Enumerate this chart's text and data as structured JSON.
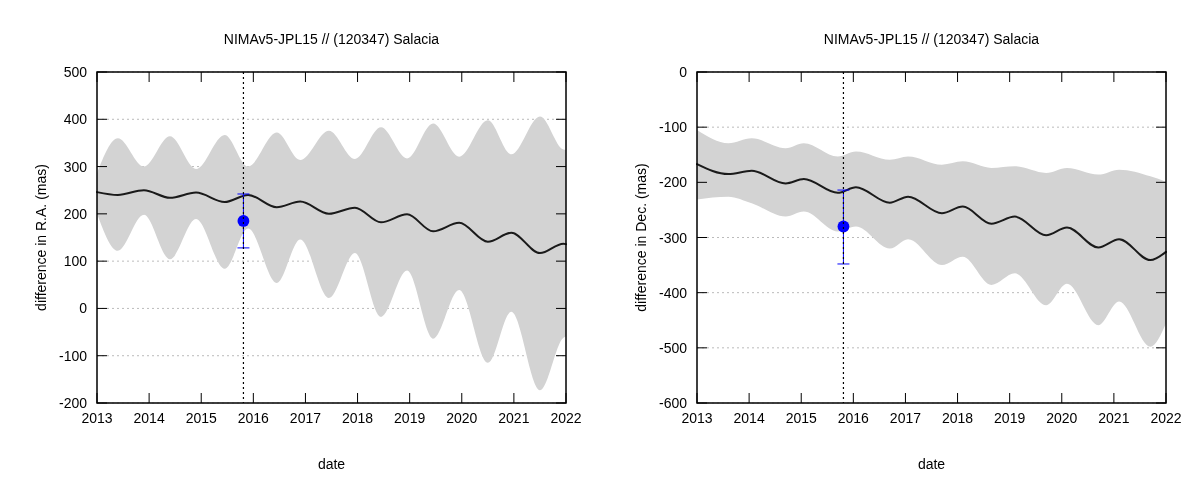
{
  "chart_data": [
    {
      "type": "line",
      "title": "NIMAv5-JPL15 // (120347) Salacia",
      "xlabel": "date",
      "ylabel": "difference in R.A. (mas)",
      "xlim": [
        2013,
        2022
      ],
      "xticks": [
        2013,
        2014,
        2015,
        2016,
        2017,
        2018,
        2019,
        2020,
        2021,
        2022
      ],
      "ylim": [
        -200,
        500
      ],
      "yticks": [
        -200,
        -100,
        0,
        100,
        200,
        300,
        400,
        500
      ],
      "grid": "y",
      "line_style": "solid",
      "series": [
        {
          "type": "line",
          "color": "#1a1a1a",
          "x": [
            2013,
            2013.4,
            2013.9,
            2014.4,
            2014.9,
            2015.45,
            2015.9,
            2016.45,
            2016.9,
            2017.45,
            2017.95,
            2018.45,
            2018.95,
            2019.45,
            2019.95,
            2020.5,
            2020.95,
            2021.5,
            2021.95,
            2022
          ],
          "values": [
            246,
            240,
            250,
            234,
            245,
            225,
            240,
            214,
            226,
            200,
            213,
            182,
            199,
            163,
            181,
            141,
            160,
            117,
            137,
            136
          ],
          "upper": [
            286,
            360,
            300,
            364,
            295,
            367,
            300,
            372,
            314,
            376,
            316,
            383,
            317,
            391,
            321,
            398,
            326,
            406,
            336,
            335
          ],
          "lower": [
            201,
            122,
            198,
            104,
            189,
            84,
            169,
            54,
            146,
            22,
            117,
            -18,
            80,
            -64,
            39,
            -115,
            -7,
            -173,
            -62,
            -59
          ]
        },
        {
          "type": "scatter",
          "color": "#0000ff",
          "marker": "circle",
          "x": [
            2015.81
          ],
          "values": [
            185
          ],
          "errors": [
            [
              128,
              242
            ]
          ]
        }
      ],
      "ref_lines": [
        {
          "axis": "x",
          "value": 2015.81,
          "color": "#000000",
          "line_style": "dotted"
        }
      ]
    },
    {
      "type": "line",
      "title": "NIMAv5-JPL15 // (120347) Salacia",
      "xlabel": "date",
      "ylabel": "difference in Dec. (mas)",
      "xlim": [
        2013,
        2022
      ],
      "xticks": [
        2013,
        2014,
        2015,
        2016,
        2017,
        2018,
        2019,
        2020,
        2021,
        2022
      ],
      "ylim": [
        -600,
        0
      ],
      "yticks": [
        -600,
        -500,
        -400,
        -300,
        -200,
        -100,
        0
      ],
      "grid": "y",
      "line_style": "solid",
      "series": [
        {
          "type": "line",
          "color": "#1a1a1a",
          "x": [
            2013,
            2013.6,
            2014.05,
            2014.7,
            2015.05,
            2015.7,
            2016.05,
            2016.7,
            2017.05,
            2017.7,
            2018.1,
            2018.65,
            2019.1,
            2019.7,
            2020.1,
            2020.7,
            2021.1,
            2021.7,
            2022
          ],
          "values": [
            -167,
            -185,
            -179,
            -202,
            -194,
            -219,
            -209,
            -237,
            -226,
            -256,
            -244,
            -275,
            -262,
            -296,
            -282,
            -318,
            -303,
            -341,
            -326
          ],
          "upper": [
            -105,
            -129,
            -120,
            -138,
            -129,
            -153,
            -144,
            -159,
            -153,
            -168,
            -162,
            -174,
            -171,
            -183,
            -174,
            -186,
            -177,
            -189,
            -199
          ],
          "lower": [
            -231,
            -226,
            -238,
            -262,
            -253,
            -289,
            -280,
            -320,
            -303,
            -350,
            -335,
            -386,
            -365,
            -423,
            -384,
            -459,
            -416,
            -498,
            -456
          ]
        },
        {
          "type": "scatter",
          "color": "#0000ff",
          "marker": "circle",
          "x": [
            2015.81
          ],
          "values": [
            -280
          ],
          "errors": [
            [
              -348,
              -214
            ]
          ]
        }
      ],
      "ref_lines": [
        {
          "axis": "x",
          "value": 2015.81,
          "color": "#000000",
          "line_style": "dotted"
        }
      ]
    }
  ]
}
